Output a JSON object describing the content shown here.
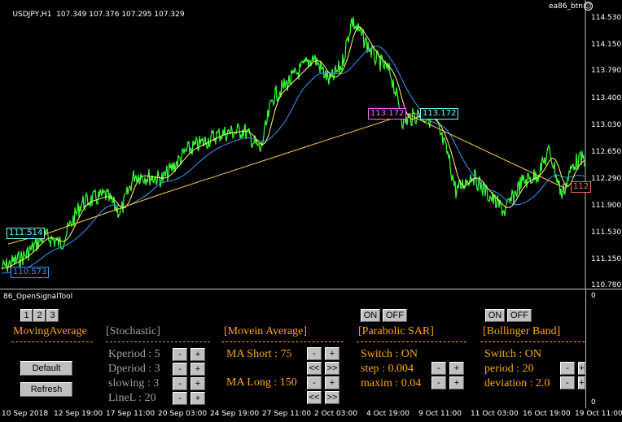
{
  "chart": {
    "symbol": "USDJPY,H1",
    "ohlc": "107.349 107.376 107.295 107.329",
    "ea_name": "ea86_btn",
    "price_ticks": [
      "114.530",
      "114.150",
      "113.790",
      "113.400",
      "113.030",
      "112.650",
      "112.290",
      "111.900",
      "111.530",
      "111.150",
      "110.780"
    ],
    "labels": {
      "left_cyan": "111.514",
      "left_blue": "110.573",
      "mid_magenta": "113.172",
      "mid_cyan": "113.172",
      "right_red": "112"
    },
    "colors": {
      "price": "#33ff33",
      "ma_short": "#ffff66",
      "ma_long": "#3399ff",
      "trendline": "#ffcc33"
    }
  },
  "subwindow": {
    "title": "86_OpenSignalTool",
    "axis_top": "0",
    "axis_bottom": "0",
    "tabs": [
      "1",
      "2",
      "3"
    ],
    "sections": {
      "moving_average": {
        "title": "MovingAverage",
        "default_btn": "Default",
        "refresh_btn": "Refresh"
      },
      "stochastic": {
        "title": "[Stochastic]",
        "rows": [
          "Kperiod : 5",
          "Dperiod : 3",
          "slowing : 3",
          "LineL  : 20"
        ]
      },
      "movein_average": {
        "title": "[Movein Average]",
        "ma_short": "MA Short : 75",
        "ma_long": "MA Long : 150"
      },
      "parabolic_sar": {
        "on": "ON",
        "off": "OFF",
        "title": "[Parabolic SAR]",
        "switch": "Switch : ON",
        "step": "step : 0.004",
        "maxim": "maxim : 0.04"
      },
      "bollinger_band": {
        "on": "ON",
        "off": "OFF",
        "title": "[Bollinger Band]",
        "switch": "Switch : ON",
        "period": "period : 20",
        "deviation": "deviation : 2.0"
      }
    },
    "btn_minus": "-",
    "btn_plus": "+",
    "btn_left": "<<",
    "btn_right": ">>"
  },
  "time_axis": [
    "10 Sep 2018",
    "12 Sep 19:00",
    "17 Sep 11:00",
    "20 Sep 03:00",
    "24 Sep 19:00",
    "27 Sep 11:00",
    "2 Oct 03:00",
    "4 Oct 19:00",
    "9 Oct 11:00",
    "11 Oct 03:00",
    "16 Oct 19:00",
    "19 Oct 11:00"
  ]
}
